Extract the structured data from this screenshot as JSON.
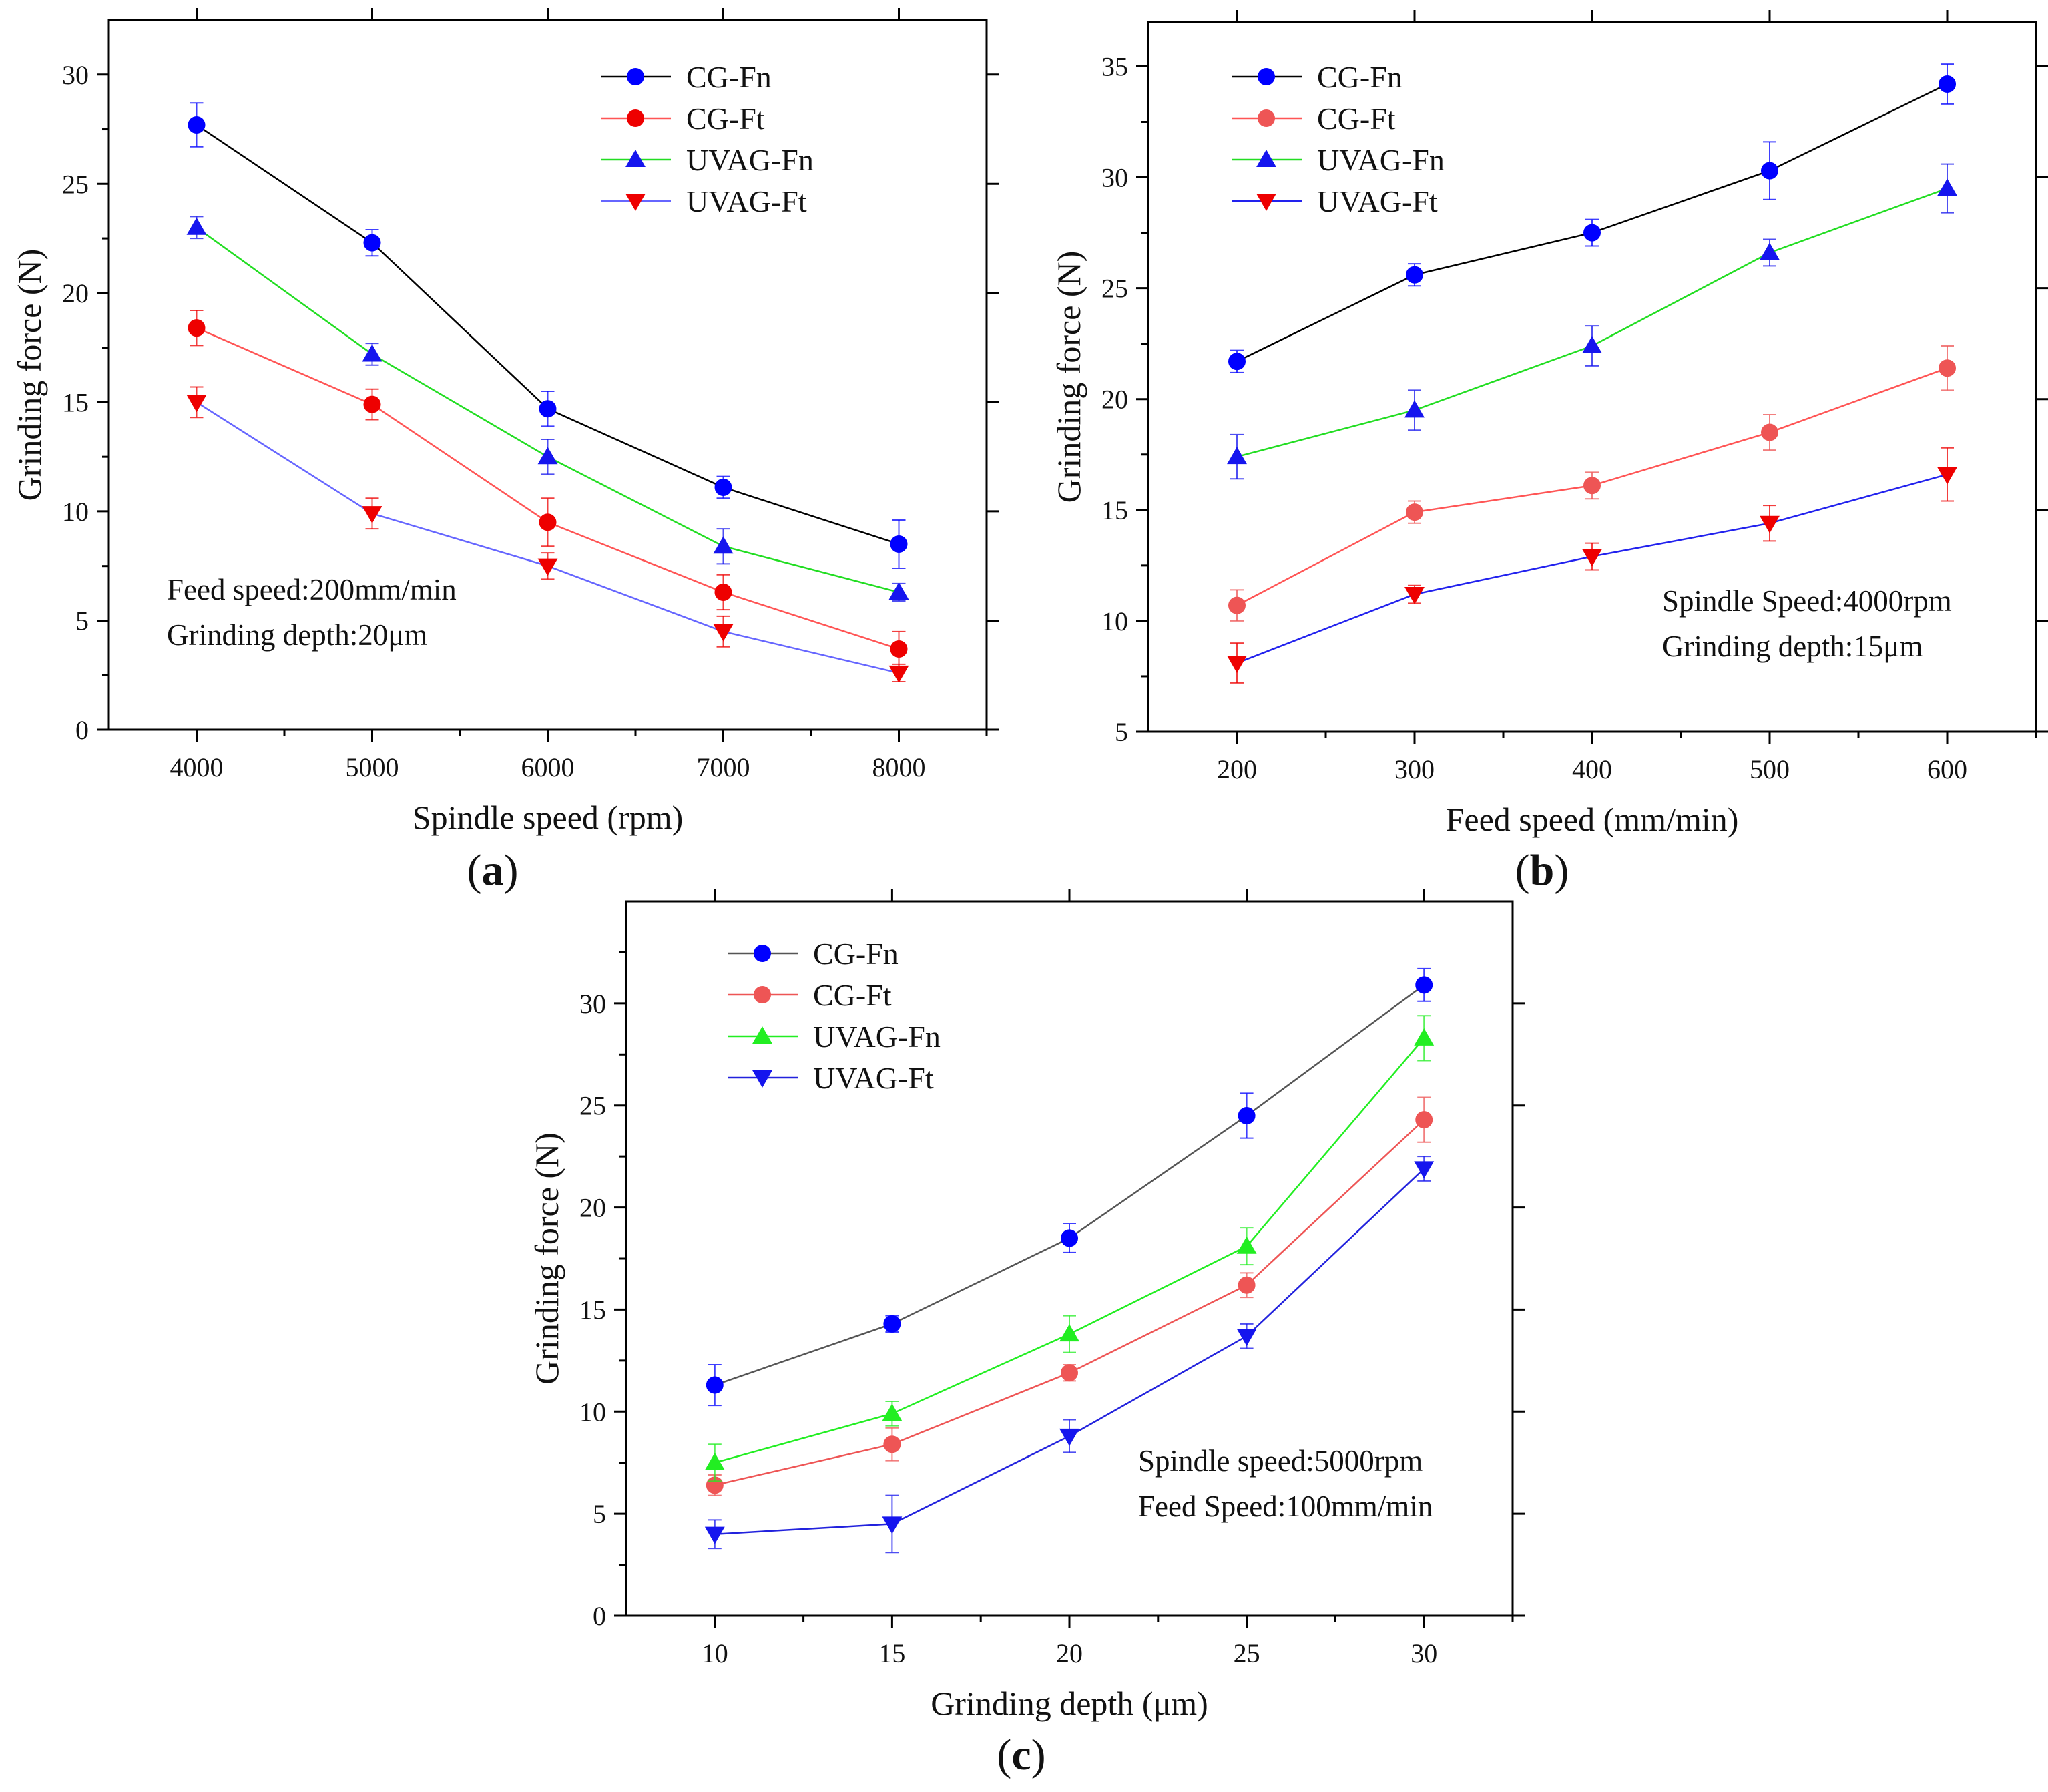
{
  "figure": {
    "panel_labels": [
      "(a)",
      "(b)",
      "(c)"
    ]
  },
  "chart_data": [
    {
      "type": "line",
      "panel": "a",
      "panel_letter": "a",
      "xlabel": "Spindle speed (rpm)",
      "ylabel": "Grinding force (N)",
      "x": [
        4000,
        5000,
        6000,
        7000,
        8000
      ],
      "xticks": [
        4000,
        5000,
        6000,
        7000,
        8000
      ],
      "xlim": [
        3500,
        8500
      ],
      "ylim": [
        0,
        32.5
      ],
      "yticks": [
        0,
        5,
        10,
        15,
        20,
        25,
        30
      ],
      "legend_position": "top-right",
      "annotations": [
        "Feed speed:200mm/min",
        "Grinding depth:20μm"
      ],
      "annotation_position": "bottom-left",
      "series": [
        {
          "name": "CG-Fn",
          "marker": "circle",
          "line_color": "#000000",
          "marker_color": "#0000ff",
          "values": [
            27.7,
            22.3,
            14.7,
            11.1,
            8.5
          ],
          "errors": [
            1.0,
            0.6,
            0.8,
            0.5,
            1.1
          ]
        },
        {
          "name": "CG-Ft",
          "marker": "circle",
          "line_color": "#ff5555",
          "marker_color": "#ee0000",
          "values": [
            18.4,
            14.9,
            9.5,
            6.3,
            3.7
          ],
          "errors": [
            0.8,
            0.7,
            1.1,
            0.8,
            0.8
          ]
        },
        {
          "name": "UVAG-Fn",
          "marker": "triangle-up",
          "line_color": "#22dd22",
          "marker_color": "#1515ee",
          "values": [
            23.0,
            17.2,
            12.5,
            8.4,
            6.3
          ],
          "errors": [
            0.5,
            0.5,
            0.8,
            0.8,
            0.4
          ]
        },
        {
          "name": "UVAG-Ft",
          "marker": "triangle-down",
          "line_color": "#6666ff",
          "marker_color": "#ee0000",
          "values": [
            15.0,
            9.9,
            7.5,
            4.5,
            2.6
          ],
          "errors": [
            0.7,
            0.7,
            0.6,
            0.7,
            0.4
          ]
        }
      ]
    },
    {
      "type": "line",
      "panel": "b",
      "panel_letter": "b",
      "xlabel": "Feed speed (mm/min)",
      "ylabel": "Grinding force (N)",
      "x": [
        200,
        300,
        400,
        500,
        600
      ],
      "xticks": [
        200,
        300,
        400,
        500,
        600
      ],
      "xlim": [
        150,
        650
      ],
      "ylim": [
        5,
        37
      ],
      "yticks": [
        5,
        10,
        15,
        20,
        25,
        30,
        35
      ],
      "legend_position": "top-left",
      "annotations": [
        "Spindle Speed:4000rpm",
        "Grinding depth:15μm"
      ],
      "annotation_position": "bottom-right",
      "series": [
        {
          "name": "CG-Fn",
          "marker": "circle",
          "line_color": "#000000",
          "marker_color": "#0000ff",
          "values": [
            21.7,
            25.6,
            27.5,
            30.3,
            34.2
          ],
          "errors": [
            0.5,
            0.5,
            0.6,
            1.3,
            0.9
          ]
        },
        {
          "name": "CG-Ft",
          "marker": "circle",
          "line_color": "#ff5555",
          "marker_color": "#ee5555",
          "values": [
            10.7,
            14.9,
            16.1,
            18.5,
            21.4
          ],
          "errors": [
            0.7,
            0.5,
            0.6,
            0.8,
            1.0
          ]
        },
        {
          "name": "UVAG-Fn",
          "marker": "triangle-up",
          "line_color": "#22dd22",
          "marker_color": "#1515ee",
          "values": [
            17.4,
            19.5,
            22.4,
            26.6,
            29.5
          ],
          "errors": [
            1.0,
            0.9,
            0.9,
            0.6,
            1.1
          ]
        },
        {
          "name": "UVAG-Ft",
          "marker": "triangle-down",
          "line_color": "#2222ee",
          "marker_color": "#ee0000",
          "values": [
            8.1,
            11.2,
            12.9,
            14.4,
            16.6
          ],
          "errors": [
            0.9,
            0.4,
            0.6,
            0.8,
            1.2
          ]
        }
      ]
    },
    {
      "type": "line",
      "panel": "c",
      "panel_letter": "c",
      "xlabel": "Grinding depth (μm)",
      "ylabel": "Grinding force (N)",
      "x": [
        10,
        15,
        20,
        25,
        30
      ],
      "xticks": [
        10,
        15,
        20,
        25,
        30
      ],
      "xlim": [
        7.5,
        32.5
      ],
      "ylim": [
        0,
        35
      ],
      "yticks": [
        0,
        5,
        10,
        15,
        20,
        25,
        30
      ],
      "legend_position": "top-left",
      "annotations": [
        "Spindle speed:5000rpm",
        "Feed Speed:100mm/min"
      ],
      "annotation_position": "bottom-right",
      "series": [
        {
          "name": "CG-Fn",
          "marker": "circle",
          "line_color": "#555555",
          "marker_color": "#0000ff",
          "values": [
            11.3,
            14.3,
            18.5,
            24.5,
            30.9
          ],
          "errors": [
            1.0,
            0.4,
            0.7,
            1.1,
            0.8
          ]
        },
        {
          "name": "CG-Ft",
          "marker": "circle",
          "line_color": "#ee5555",
          "marker_color": "#ee5555",
          "values": [
            6.4,
            8.4,
            11.9,
            16.2,
            24.3
          ],
          "errors": [
            0.5,
            0.8,
            0.4,
            0.6,
            1.1
          ]
        },
        {
          "name": "UVAG-Fn",
          "marker": "triangle-up",
          "line_color": "#22ee22",
          "marker_color": "#22ee22",
          "values": [
            7.5,
            9.9,
            13.8,
            18.1,
            28.3
          ],
          "errors": [
            0.9,
            0.6,
            0.9,
            0.9,
            1.1
          ]
        },
        {
          "name": "UVAG-Ft",
          "marker": "triangle-down",
          "line_color": "#2222dd",
          "marker_color": "#1515ee",
          "values": [
            4.0,
            4.5,
            8.8,
            13.7,
            21.9
          ],
          "errors": [
            0.7,
            1.4,
            0.8,
            0.6,
            0.6
          ]
        }
      ]
    }
  ]
}
